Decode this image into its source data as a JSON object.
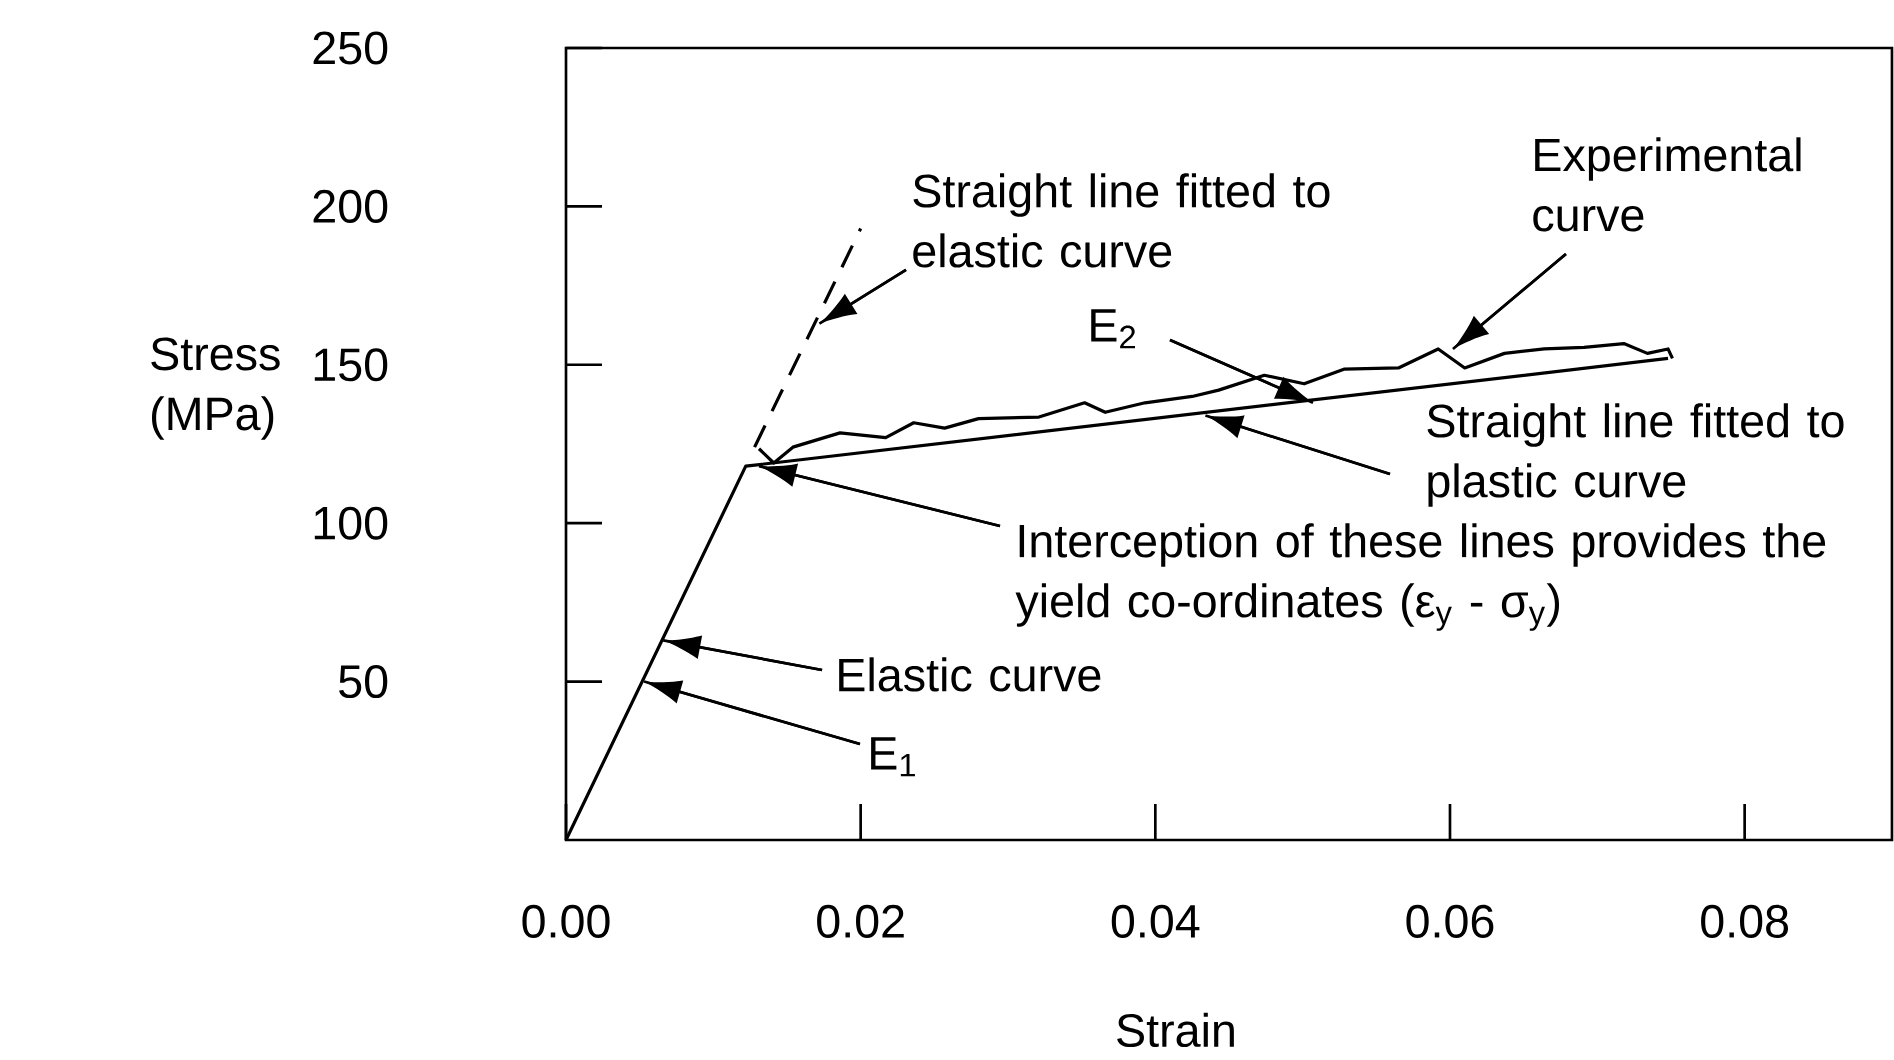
{
  "chart_data": {
    "type": "line",
    "xlabel": "Strain",
    "ylabel": "Stress (MPa)",
    "xlim": [
      0,
      0.09
    ],
    "ylim": [
      0,
      250
    ],
    "xticks": [
      {
        "value": 0,
        "label": "0.00"
      },
      0.02,
      0.04,
      0.06,
      0.08
    ],
    "yticks": [
      50,
      100,
      150,
      200,
      250
    ],
    "series": [
      {
        "color": "#000000",
        "line_style": "solid",
        "x": [
          0,
          0.0122,
          0.0748
        ],
        "values": [
          0,
          118,
          152
        ]
      },
      {
        "color": "#000000",
        "line_style": "dashed",
        "x": [
          0.0128,
          0.02
        ],
        "values": [
          124,
          193
        ]
      },
      {
        "color": "#000000",
        "line_style": "solid",
        "x": [
          0.0131,
          0.0141,
          0.0154,
          0.0186,
          0.0217,
          0.0236,
          0.0257,
          0.028,
          0.0321,
          0.0352,
          0.0366,
          0.0393,
          0.0425,
          0.0443,
          0.0474,
          0.0501,
          0.0528,
          0.0565,
          0.0592,
          0.061,
          0.0637,
          0.0664,
          0.0691,
          0.0718,
          0.0734,
          0.0748,
          0.0751
        ],
        "values": [
          123.5,
          119,
          124,
          128.5,
          127,
          131.7,
          130,
          133,
          133.5,
          138,
          135,
          138,
          140,
          142,
          146.7,
          144,
          148.6,
          149,
          155,
          149,
          153.6,
          155,
          155.5,
          156.7,
          153.6,
          155,
          152
        ]
      }
    ],
    "annotations": [
      {
        "text": "Straight line fitted to elastic curve",
        "x": 0.0172,
        "y": 163
      },
      {
        "text": "Experimental curve",
        "x": 0.0602,
        "y": 155
      },
      {
        "text": "E$_{2}$",
        "x": 0.0507,
        "y": 138
      },
      {
        "text": "Straight line fitted to plastic curve",
        "x": 0.0434,
        "y": 134
      },
      {
        "text": "Interception of these lines provides the yield co-ordinates (ε$_{y}$ - σ$_{y}$)",
        "x": 0.0131,
        "y": 118
      },
      {
        "text": "Elastic curve",
        "x": 0.0066,
        "y": 63
      },
      {
        "text": "E$_{1}$",
        "x": 0.0053,
        "y": 50
      }
    ]
  }
}
